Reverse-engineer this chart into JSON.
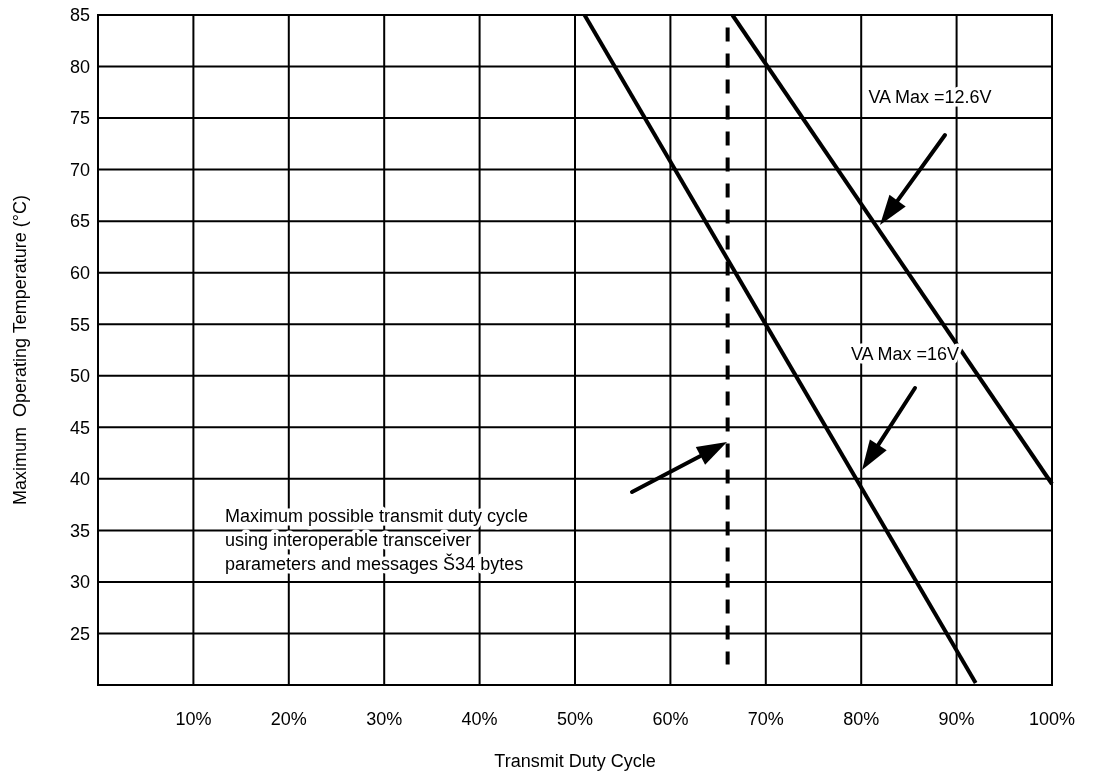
{
  "chart_data": {
    "type": "line",
    "xlabel": "Transmit Duty Cycle",
    "ylabel": "Maximum  Operating Temperature (°C)",
    "xlim": [
      0,
      100
    ],
    "xticks": [
      {
        "value": 10,
        "label": "10%"
      },
      {
        "value": 20,
        "label": "20%"
      },
      {
        "value": 30,
        "label": "30%"
      },
      {
        "value": 40,
        "label": "40%"
      },
      {
        "value": 50,
        "label": "50%"
      },
      {
        "value": 60,
        "label": "60%"
      },
      {
        "value": 70,
        "label": "70%"
      },
      {
        "value": 80,
        "label": "80%"
      },
      {
        "value": 90,
        "label": "90%"
      },
      {
        "value": 100,
        "label": "100%"
      }
    ],
    "ylim": [
      20,
      85
    ],
    "yticks": [
      25,
      30,
      35,
      40,
      45,
      50,
      55,
      60,
      65,
      70,
      75,
      80,
      85
    ],
    "grid": true,
    "marker": "none",
    "series": [
      {
        "color": "#000000",
        "x": [
          51,
          92
        ],
        "values": [
          85,
          20.2
        ],
        "line_style": "solid"
      },
      {
        "color": "#000000",
        "x": [
          66.5,
          100
        ],
        "values": [
          85,
          39.5
        ],
        "line_style": "solid"
      },
      {
        "color": "#000000",
        "x": [
          66,
          66
        ],
        "values": [
          85,
          22
        ],
        "line_style": "dashed"
      }
    ],
    "annotations": [
      "VA Max =12.6V",
      "VA Max =16V",
      "Maximum possible transmit duty cycle using interoperable transceiver parameters and messages Š34 bytes"
    ]
  }
}
